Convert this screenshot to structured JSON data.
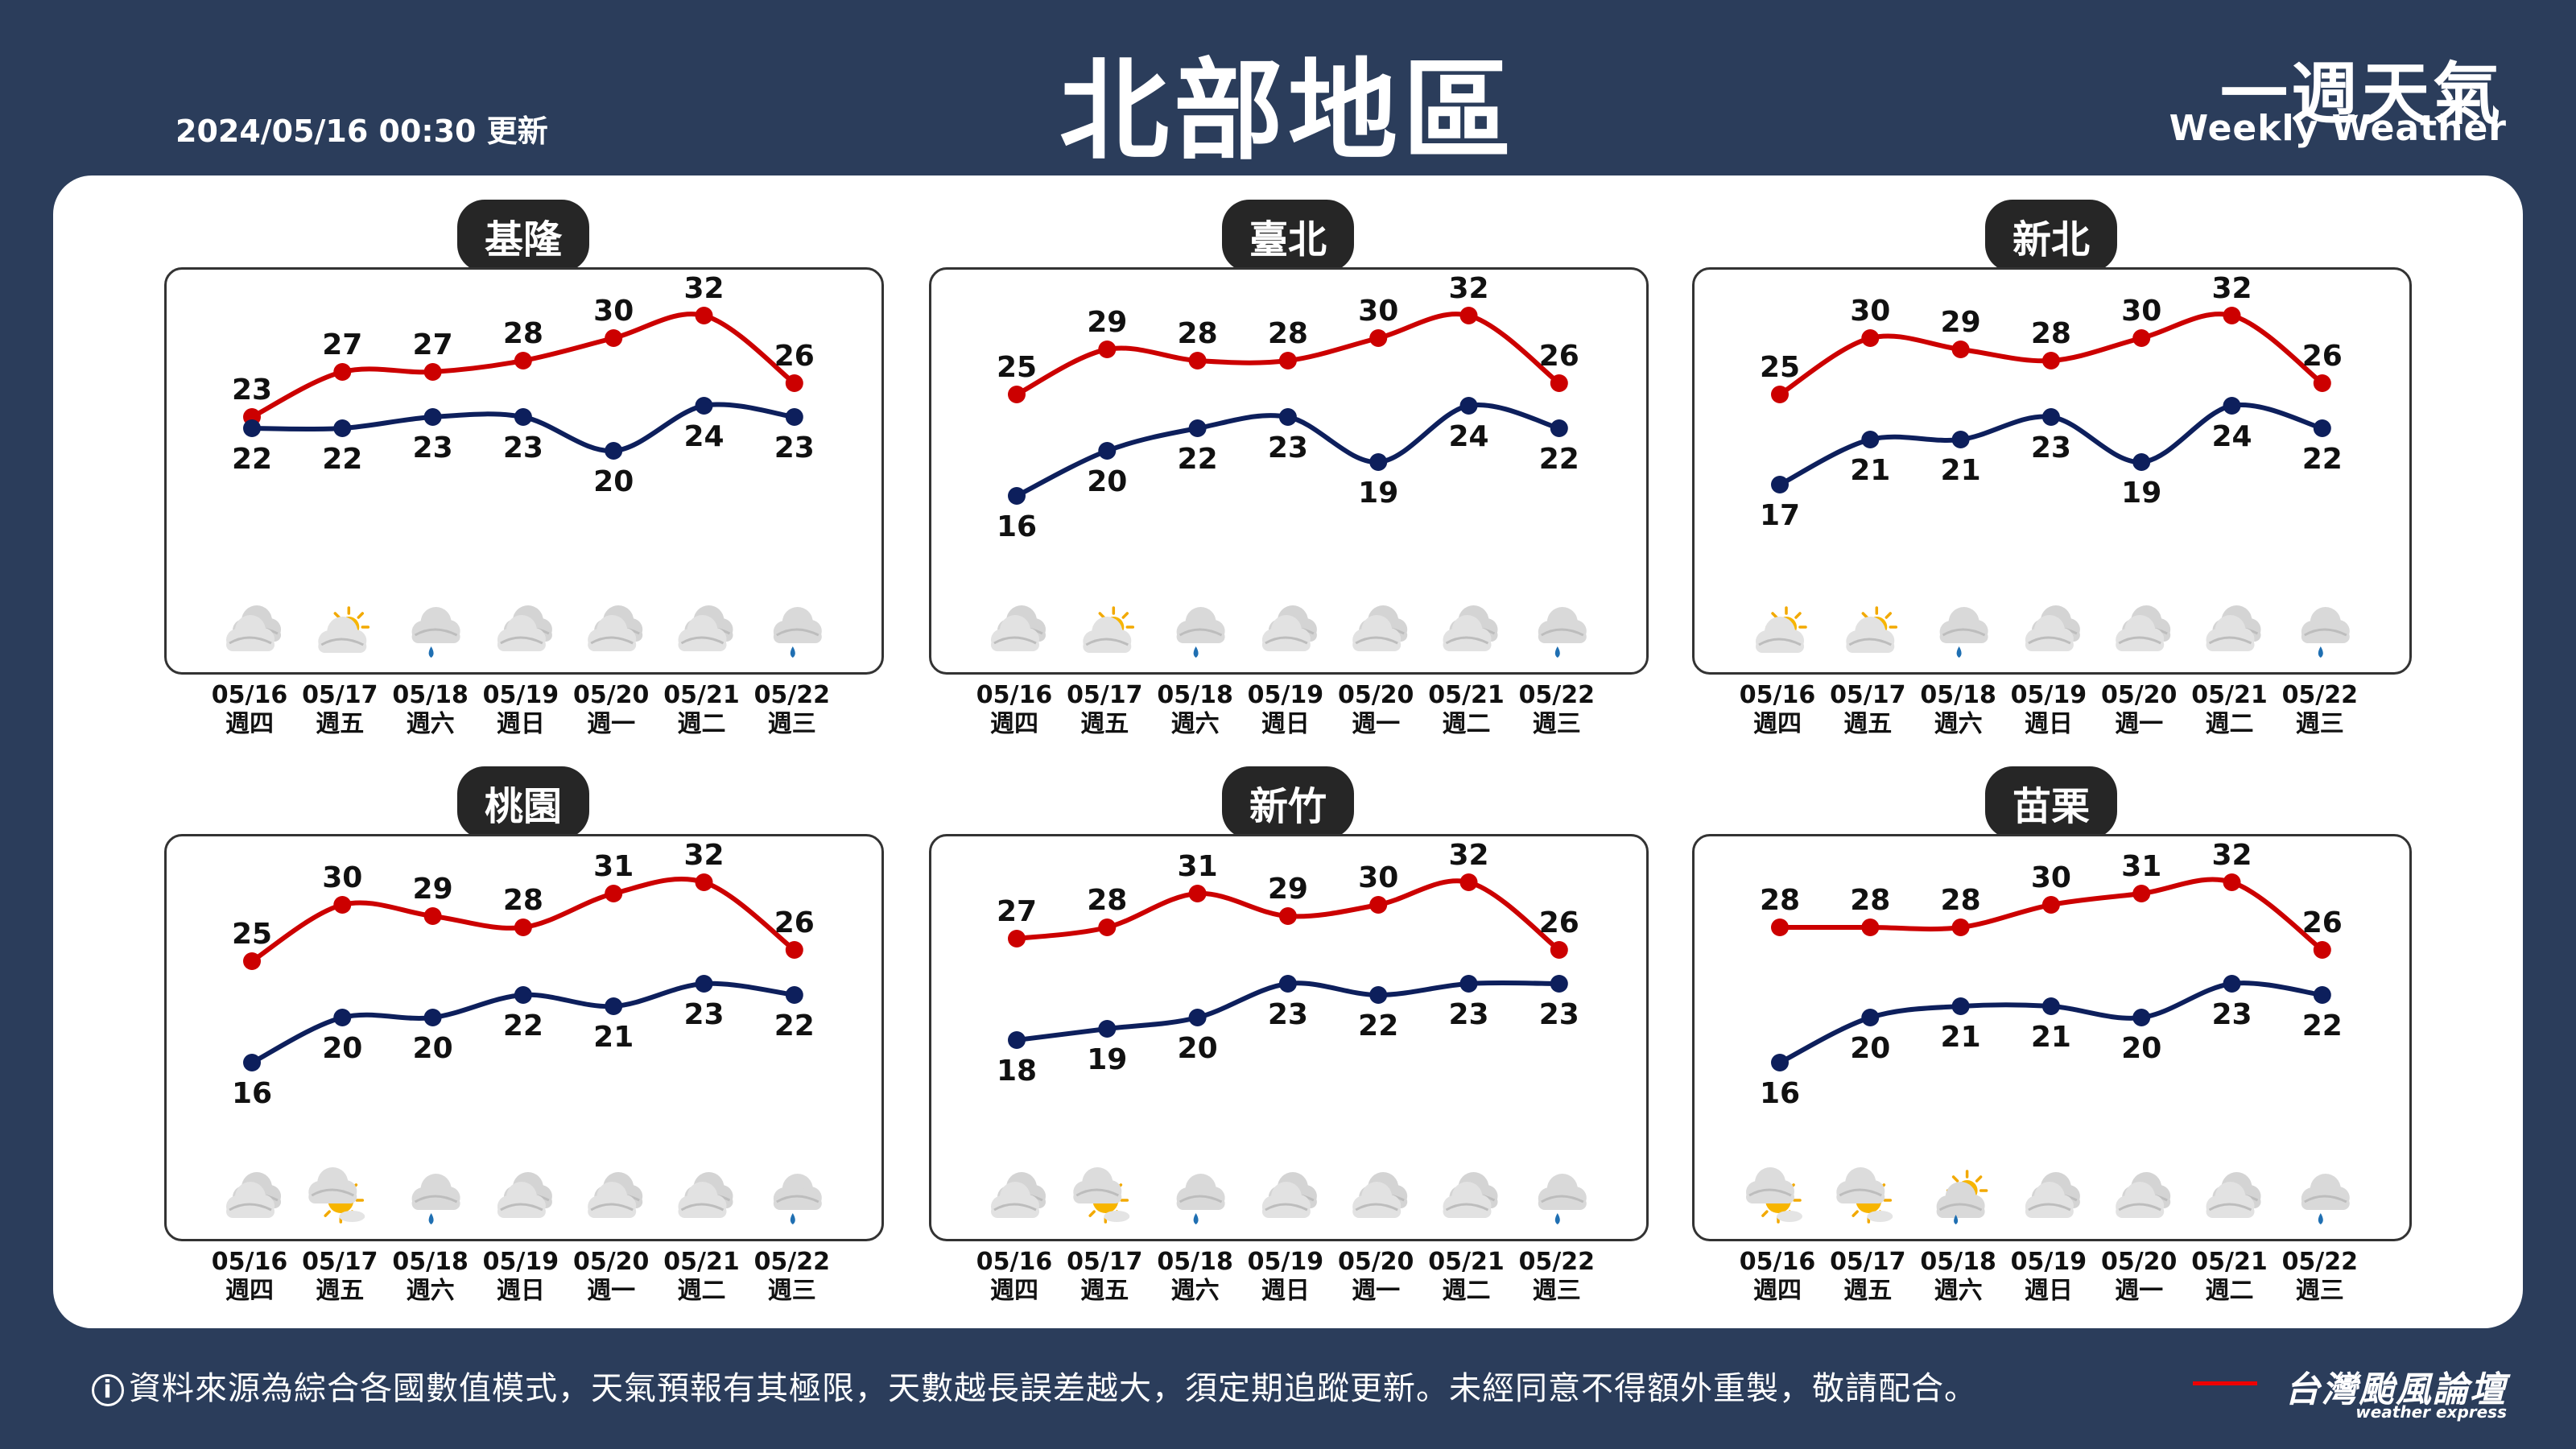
{
  "header": {
    "title": "北部地區",
    "updated": "2024/05/16 00:30 更新",
    "brand_zh": "一週天氣",
    "brand_en": "Weekly Weather"
  },
  "footer": {
    "info_icon": "i",
    "note": "資料來源為綜合各國數值模式，天氣預報有其極限，天數越長誤差越大，須定期追蹤更新。未經同意不得額外重製，敬請配合。",
    "logo_zh": "台灣颱風論壇",
    "logo_en": "weather express"
  },
  "dates": [
    "05/16",
    "05/17",
    "05/18",
    "05/19",
    "05/20",
    "05/21",
    "05/22"
  ],
  "weekdays": [
    "週四",
    "週五",
    "週六",
    "週日",
    "週一",
    "週二",
    "週三"
  ],
  "colors": {
    "high": "#cc0000",
    "low": "#0d1f5c",
    "background": "#2b3d5b"
  },
  "chart_data": [
    {
      "type": "line",
      "title": "基隆",
      "categories": [
        "05/16",
        "05/17",
        "05/18",
        "05/19",
        "05/20",
        "05/21",
        "05/22"
      ],
      "series": [
        {
          "name": "high",
          "values": [
            23,
            27,
            27,
            28,
            30,
            32,
            26
          ]
        },
        {
          "name": "low",
          "values": [
            22,
            22,
            23,
            23,
            20,
            24,
            23
          ]
        }
      ],
      "icons": [
        "cloudy",
        "partly-sunny",
        "rain",
        "cloudy",
        "cloudy",
        "cloudy",
        "rain"
      ]
    },
    {
      "type": "line",
      "title": "臺北",
      "categories": [
        "05/16",
        "05/17",
        "05/18",
        "05/19",
        "05/20",
        "05/21",
        "05/22"
      ],
      "series": [
        {
          "name": "high",
          "values": [
            25,
            29,
            28,
            28,
            30,
            32,
            26
          ]
        },
        {
          "name": "low",
          "values": [
            16,
            20,
            22,
            23,
            19,
            24,
            22
          ]
        }
      ],
      "icons": [
        "cloudy",
        "partly-sunny",
        "rain",
        "cloudy",
        "cloudy",
        "cloudy",
        "rain"
      ]
    },
    {
      "type": "line",
      "title": "新北",
      "categories": [
        "05/16",
        "05/17",
        "05/18",
        "05/19",
        "05/20",
        "05/21",
        "05/22"
      ],
      "series": [
        {
          "name": "high",
          "values": [
            25,
            30,
            29,
            28,
            30,
            32,
            26
          ]
        },
        {
          "name": "low",
          "values": [
            17,
            21,
            21,
            23,
            19,
            24,
            22
          ]
        }
      ],
      "icons": [
        "partly-sunny",
        "partly-sunny",
        "rain",
        "cloudy",
        "cloudy",
        "cloudy",
        "rain"
      ]
    },
    {
      "type": "line",
      "title": "桃園",
      "categories": [
        "05/16",
        "05/17",
        "05/18",
        "05/19",
        "05/20",
        "05/21",
        "05/22"
      ],
      "series": [
        {
          "name": "high",
          "values": [
            25,
            30,
            29,
            28,
            31,
            32,
            26
          ]
        },
        {
          "name": "low",
          "values": [
            16,
            20,
            20,
            22,
            21,
            23,
            22
          ]
        }
      ],
      "icons": [
        "cloudy",
        "sunny-cloud",
        "rain",
        "cloudy",
        "cloudy",
        "cloudy",
        "rain"
      ]
    },
    {
      "type": "line",
      "title": "新竹",
      "categories": [
        "05/16",
        "05/17",
        "05/18",
        "05/19",
        "05/20",
        "05/21",
        "05/22"
      ],
      "series": [
        {
          "name": "high",
          "values": [
            27,
            28,
            31,
            29,
            30,
            32,
            26
          ]
        },
        {
          "name": "low",
          "values": [
            18,
            19,
            20,
            23,
            22,
            23,
            23
          ]
        }
      ],
      "icons": [
        "cloudy",
        "sunny-cloud",
        "rain",
        "cloudy",
        "cloudy",
        "cloudy",
        "rain"
      ]
    },
    {
      "type": "line",
      "title": "苗栗",
      "categories": [
        "05/16",
        "05/17",
        "05/18",
        "05/19",
        "05/20",
        "05/21",
        "05/22"
      ],
      "series": [
        {
          "name": "high",
          "values": [
            28,
            28,
            28,
            30,
            31,
            32,
            26
          ]
        },
        {
          "name": "low",
          "values": [
            16,
            20,
            21,
            21,
            20,
            23,
            22
          ]
        }
      ],
      "icons": [
        "sunny-cloud",
        "sunny-cloud",
        "sun-rain",
        "cloudy",
        "cloudy",
        "cloudy",
        "rain"
      ]
    }
  ]
}
